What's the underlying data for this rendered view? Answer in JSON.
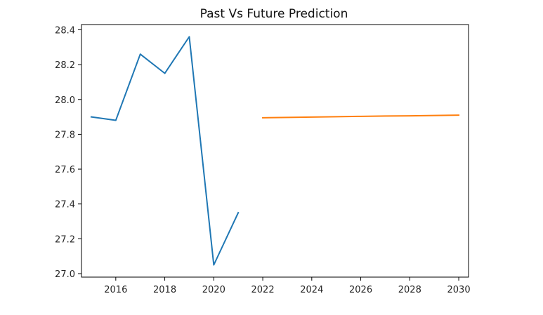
{
  "chart_data": {
    "type": "line",
    "title": "Past Vs Future Prediction",
    "xlabel": "",
    "ylabel": "",
    "xlim": [
      2014.6,
      2030.4
    ],
    "ylim": [
      26.98,
      28.43
    ],
    "grid": false,
    "x_ticks": [
      2016,
      2018,
      2020,
      2022,
      2024,
      2026,
      2028,
      2030
    ],
    "x_tick_labels": [
      "2016",
      "2018",
      "2020",
      "2022",
      "2024",
      "2026",
      "2028",
      "2030"
    ],
    "y_ticks": [
      27.0,
      27.2,
      27.4,
      27.6,
      27.8,
      28.0,
      28.2,
      28.4
    ],
    "y_tick_labels": [
      "27.0",
      "27.2",
      "27.4",
      "27.6",
      "27.8",
      "28.0",
      "28.2",
      "28.4"
    ],
    "series": [
      {
        "color": "#1f77b4",
        "x": [
          2015,
          2016,
          2017,
          2018,
          2019,
          2020,
          2021
        ],
        "y": [
          27.9,
          27.88,
          28.26,
          28.15,
          28.36,
          27.05,
          27.35
        ]
      },
      {
        "color": "#ff7f0e",
        "x": [
          2022,
          2023,
          2024,
          2025,
          2026,
          2027,
          2028,
          2029,
          2030
        ],
        "y": [
          27.895,
          27.897,
          27.899,
          27.901,
          27.903,
          27.905,
          27.906,
          27.908,
          27.91
        ]
      }
    ]
  }
}
